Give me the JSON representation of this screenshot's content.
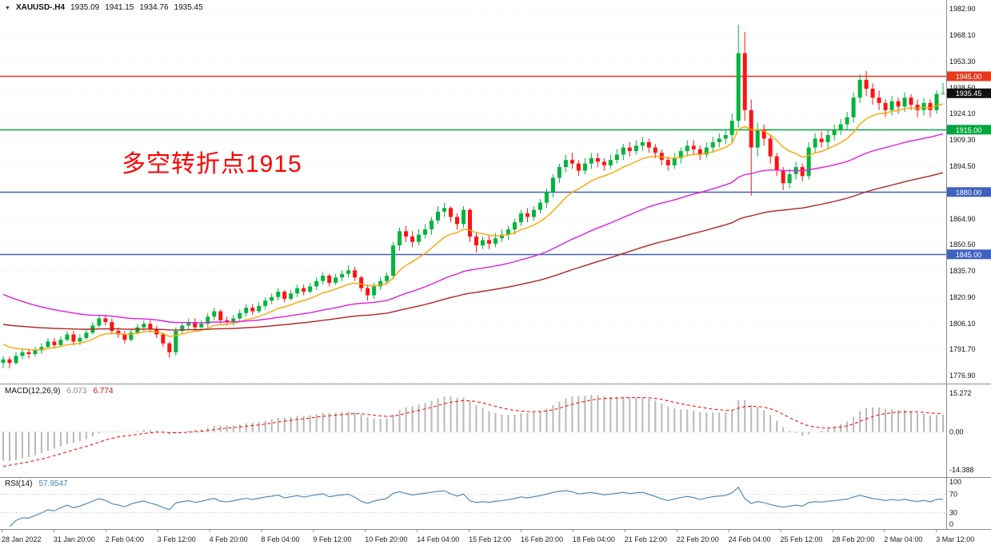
{
  "header": {
    "symbol": "XAUUSD-.H4",
    "open": "1935.09",
    "high": "1941.15",
    "low": "1934.76",
    "close": "1935.45"
  },
  "annotation": {
    "text": "多空转折点1915",
    "color": "#ff0000"
  },
  "colors": {
    "bull": "#00b43c",
    "bear": "#ff1212",
    "grid": "#ebebeb",
    "divider": "#8c8c8c",
    "axis_text": "#111111",
    "time_text": "#222222",
    "tag_text": "#ffffff",
    "current_tag_bg": "#111111"
  },
  "chart_data": {
    "type": "candlestick",
    "symbol": "XAUUSD-",
    "timeframe": "H4",
    "current_price": 1935.45,
    "current_price_label": "1935.45",
    "levels": [
      {
        "price": 1945.0,
        "label": "1945.00",
        "color": "#e8391f"
      },
      {
        "price": 1915.0,
        "label": "1915.00",
        "color": "#00a73e"
      },
      {
        "price": 1880.0,
        "label": "1880.00",
        "color": "#4061c0"
      },
      {
        "price": 1845.0,
        "label": "1845.00",
        "color": "#4061c0"
      }
    ],
    "price_axis_labels": [
      "1982.90",
      "1968.10",
      "1953.30",
      "1938.50",
      "1924.10",
      "1909.30",
      "1894.50",
      "1864.90",
      "1850.50",
      "1835.70",
      "1820.90",
      "1806.10",
      "1791.70",
      "1776.90"
    ],
    "time_axis_labels": [
      "28 Jan 2022",
      "31 Jan 20:00",
      "2 Feb 04:00",
      "3 Feb 12:00",
      "4 Feb 20:00",
      "8 Feb 04:00",
      "9 Feb 12:00",
      "10 Feb 20:00",
      "14 Feb 04:00",
      "15 Feb 12:00",
      "16 Feb 20:00",
      "18 Feb 04:00",
      "21 Feb 12:00",
      "22 Feb 20:00",
      "24 Feb 04:00",
      "25 Feb 12:00",
      "28 Feb 20:00",
      "2 Mar 04:00",
      "3 Mar 12:00"
    ],
    "moving_averages": [
      {
        "name": "ma-fast",
        "method": "ema",
        "period": 12,
        "seed": 1796,
        "color": "#ffa500"
      },
      {
        "name": "ma-mid",
        "method": "ema",
        "period": 50,
        "seed": 1824,
        "color": "#e01ee0"
      },
      {
        "name": "ma-slow",
        "method": "ema",
        "period": 100,
        "seed": 1806,
        "color": "#b22222"
      }
    ],
    "macd": {
      "label": "MACD(12,26,9)",
      "value_main": "6.073",
      "value_signal": "6.774",
      "ylim": [
        -14.388,
        15.272
      ],
      "axis_labels": [
        "15.272",
        "0.00",
        "-14.388"
      ],
      "seed": {
        "ema_fast": 1796,
        "ema_slow": 1806,
        "signal": -12.5
      },
      "histogram_color": "#b8b8b8",
      "signal_color": "#ff0000"
    },
    "rsi": {
      "label": "RSI(14)",
      "value": "57.9547",
      "period": 14,
      "levels": [
        70,
        30
      ],
      "axis_labels": [
        "100",
        "70",
        "30",
        "0"
      ],
      "color": "#4682b4"
    },
    "candles": [
      [
        1784,
        1788,
        1781,
        1786
      ],
      [
        1786,
        1787.5,
        1781,
        1784
      ],
      [
        1784,
        1790,
        1783,
        1788
      ],
      [
        1788,
        1792,
        1786,
        1790
      ],
      [
        1790,
        1792,
        1786.5,
        1789
      ],
      [
        1789,
        1793,
        1787.5,
        1791
      ],
      [
        1791,
        1795,
        1789,
        1793
      ],
      [
        1793,
        1798,
        1792,
        1796
      ],
      [
        1796,
        1798,
        1792,
        1794
      ],
      [
        1794,
        1799,
        1793,
        1797
      ],
      [
        1797,
        1802,
        1796,
        1800
      ],
      [
        1800,
        1802,
        1794,
        1796
      ],
      [
        1796,
        1800,
        1794,
        1798
      ],
      [
        1798,
        1803,
        1797,
        1801
      ],
      [
        1801,
        1807,
        1800,
        1805
      ],
      [
        1805,
        1811,
        1804,
        1809
      ],
      [
        1809,
        1811,
        1805,
        1807
      ],
      [
        1807,
        1809,
        1800,
        1802
      ],
      [
        1802,
        1804,
        1798,
        1800
      ],
      [
        1800,
        1802,
        1795,
        1797
      ],
      [
        1797,
        1803,
        1796,
        1801
      ],
      [
        1801,
        1806,
        1800,
        1804
      ],
      [
        1804,
        1808,
        1802,
        1806
      ],
      [
        1806,
        1808,
        1801,
        1803
      ],
      [
        1803,
        1805,
        1798,
        1800
      ],
      [
        1800,
        1801,
        1793,
        1795
      ],
      [
        1795,
        1796,
        1787,
        1790
      ],
      [
        1790,
        1804,
        1788,
        1802
      ],
      [
        1802,
        1807,
        1800,
        1805
      ],
      [
        1805,
        1809,
        1803,
        1807
      ],
      [
        1807,
        1809,
        1802,
        1804
      ],
      [
        1804,
        1808,
        1802,
        1806
      ],
      [
        1806,
        1812,
        1804,
        1810
      ],
      [
        1810,
        1815,
        1808,
        1813
      ],
      [
        1813,
        1814,
        1806,
        1808
      ],
      [
        1808,
        1810,
        1805,
        1807
      ],
      [
        1807,
        1811,
        1805,
        1809
      ],
      [
        1809,
        1814,
        1807,
        1812
      ],
      [
        1812,
        1817,
        1810,
        1815
      ],
      [
        1815,
        1817,
        1811,
        1813
      ],
      [
        1813,
        1818,
        1812,
        1816
      ],
      [
        1816,
        1821,
        1814,
        1819
      ],
      [
        1819,
        1823,
        1817,
        1821
      ],
      [
        1821,
        1826,
        1819,
        1824
      ],
      [
        1824,
        1825,
        1818,
        1820
      ],
      [
        1820,
        1825,
        1819,
        1823
      ],
      [
        1823,
        1828,
        1821,
        1826
      ],
      [
        1826,
        1828,
        1822,
        1824
      ],
      [
        1824,
        1829,
        1823,
        1827
      ],
      [
        1827,
        1832,
        1825,
        1830
      ],
      [
        1830,
        1835,
        1828,
        1833
      ],
      [
        1833,
        1834,
        1827,
        1829
      ],
      [
        1829,
        1834,
        1828,
        1832
      ],
      [
        1832,
        1836,
        1830,
        1834
      ],
      [
        1834,
        1839,
        1832,
        1836
      ],
      [
        1836,
        1838,
        1830,
        1832
      ],
      [
        1832,
        1833,
        1824,
        1826
      ],
      [
        1826,
        1828,
        1819,
        1822
      ],
      [
        1822,
        1829,
        1820,
        1827
      ],
      [
        1827,
        1832,
        1825,
        1830
      ],
      [
        1830,
        1835,
        1828,
        1833
      ],
      [
        1833,
        1852,
        1831,
        1850
      ],
      [
        1850,
        1860,
        1847,
        1858
      ],
      [
        1858,
        1861,
        1852,
        1855
      ],
      [
        1855,
        1858,
        1849,
        1852
      ],
      [
        1852,
        1859,
        1850,
        1856
      ],
      [
        1856,
        1862,
        1854,
        1859
      ],
      [
        1859,
        1866,
        1856,
        1864
      ],
      [
        1864,
        1872,
        1862,
        1869
      ],
      [
        1869,
        1874,
        1866,
        1871
      ],
      [
        1871,
        1872,
        1863,
        1866
      ],
      [
        1866,
        1868,
        1859,
        1862
      ],
      [
        1862,
        1872,
        1860,
        1870
      ],
      [
        1870,
        1871,
        1852,
        1855
      ],
      [
        1855,
        1857,
        1846,
        1850
      ],
      [
        1850,
        1855,
        1848,
        1853
      ],
      [
        1853,
        1856,
        1848,
        1851
      ],
      [
        1851,
        1857,
        1849,
        1854
      ],
      [
        1854,
        1859,
        1852,
        1856
      ],
      [
        1856,
        1861,
        1853,
        1859
      ],
      [
        1859,
        1865,
        1856,
        1863
      ],
      [
        1863,
        1870,
        1861,
        1868
      ],
      [
        1868,
        1871,
        1863,
        1866
      ],
      [
        1866,
        1872,
        1864,
        1870
      ],
      [
        1870,
        1876,
        1868,
        1874
      ],
      [
        1874,
        1882,
        1871,
        1880
      ],
      [
        1880,
        1890,
        1877,
        1888
      ],
      [
        1888,
        1896,
        1885,
        1894
      ],
      [
        1894,
        1901,
        1891,
        1898
      ],
      [
        1898,
        1902,
        1893,
        1896
      ],
      [
        1896,
        1898,
        1889,
        1892
      ],
      [
        1892,
        1899,
        1890,
        1896
      ],
      [
        1896,
        1902,
        1893,
        1899
      ],
      [
        1899,
        1902,
        1894,
        1897
      ],
      [
        1897,
        1899,
        1892,
        1895
      ],
      [
        1895,
        1901,
        1893,
        1898
      ],
      [
        1898,
        1904,
        1896,
        1901
      ],
      [
        1901,
        1907,
        1898,
        1905
      ],
      [
        1905,
        1908,
        1900,
        1903
      ],
      [
        1903,
        1909,
        1901,
        1906
      ],
      [
        1906,
        1911,
        1903,
        1908
      ],
      [
        1908,
        1910,
        1902,
        1905
      ],
      [
        1905,
        1907,
        1899,
        1902
      ],
      [
        1902,
        1904,
        1895,
        1898
      ],
      [
        1898,
        1900,
        1892,
        1895
      ],
      [
        1895,
        1902,
        1893,
        1899
      ],
      [
        1899,
        1905,
        1896,
        1903
      ],
      [
        1903,
        1909,
        1900,
        1906
      ],
      [
        1906,
        1909,
        1901,
        1904
      ],
      [
        1904,
        1906,
        1898,
        1901
      ],
      [
        1901,
        1908,
        1899,
        1905
      ],
      [
        1905,
        1911,
        1902,
        1908
      ],
      [
        1908,
        1913,
        1905,
        1910
      ],
      [
        1910,
        1915,
        1907,
        1912
      ],
      [
        1912,
        1924,
        1908,
        1920
      ],
      [
        1920,
        1974,
        1916,
        1958
      ],
      [
        1958,
        1970,
        1920,
        1926
      ],
      [
        1926,
        1932,
        1878,
        1905
      ],
      [
        1905,
        1919,
        1900,
        1915
      ],
      [
        1915,
        1918,
        1906,
        1910
      ],
      [
        1910,
        1912,
        1896,
        1900
      ],
      [
        1900,
        1902,
        1889,
        1892
      ],
      [
        1892,
        1894,
        1881,
        1885
      ],
      [
        1885,
        1893,
        1882,
        1890
      ],
      [
        1890,
        1897,
        1887,
        1894
      ],
      [
        1894,
        1896,
        1886,
        1889
      ],
      [
        1889,
        1908,
        1887,
        1905
      ],
      [
        1905,
        1913,
        1902,
        1910
      ],
      [
        1910,
        1914,
        1905,
        1908
      ],
      [
        1908,
        1915,
        1904,
        1912
      ],
      [
        1912,
        1918,
        1909,
        1915
      ],
      [
        1915,
        1921,
        1912,
        1918
      ],
      [
        1918,
        1925,
        1915,
        1922
      ],
      [
        1922,
        1936,
        1919,
        1933
      ],
      [
        1933,
        1946,
        1930,
        1943
      ],
      [
        1943,
        1948,
        1934,
        1938
      ],
      [
        1938,
        1941,
        1929,
        1933
      ],
      [
        1933,
        1937,
        1926,
        1930
      ],
      [
        1930,
        1932,
        1922,
        1926
      ],
      [
        1926,
        1934,
        1923,
        1931
      ],
      [
        1931,
        1933,
        1924,
        1928
      ],
      [
        1928,
        1936,
        1925,
        1933
      ],
      [
        1933,
        1935,
        1926,
        1929
      ],
      [
        1929,
        1932,
        1922,
        1926
      ],
      [
        1926,
        1933,
        1923,
        1930
      ],
      [
        1930,
        1932,
        1922,
        1926
      ],
      [
        1926,
        1937,
        1924,
        1935.09
      ],
      [
        1935.09,
        1941.15,
        1934.76,
        1935.45
      ]
    ]
  }
}
